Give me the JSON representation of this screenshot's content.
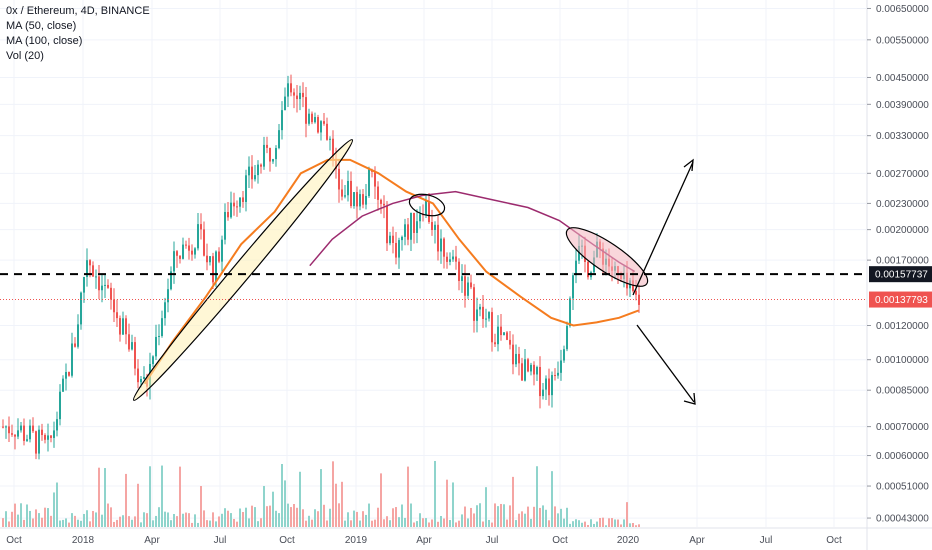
{
  "legend": {
    "symbol": "0x / Ethereum, 4D, BINANCE",
    "ma50": "MA (50, close)",
    "ma100": "MA (100, close)",
    "vol": "Vol (20)"
  },
  "colors": {
    "up": "#26a69a",
    "down": "#ef5350",
    "vol_up": "#8fd4cc",
    "vol_down": "#f5a5a3",
    "ma50": "#f57c1f",
    "ma100": "#9c2b6e",
    "last_price_line": "#ef5350",
    "dashed_level": "#000000",
    "grid": "#f0f3fa",
    "axis_text": "#4a4e58"
  },
  "chart_data": {
    "type": "candlestick",
    "title": "",
    "x_ticks": [
      "Oct",
      "2018",
      "Apr",
      "Jul",
      "Oct",
      "2019",
      "Apr",
      "Jul",
      "Oct",
      "2020",
      "Apr",
      "Jul",
      "Oct"
    ],
    "y_scale": "log",
    "y_ticks": [
      "0.00650000",
      "0.00550000",
      "0.00450000",
      "0.00390000",
      "0.00330000",
      "0.00270000",
      "0.00230000",
      "0.00200000",
      "0.00170000",
      "0.00120000",
      "0.00100000",
      "0.00085000",
      "0.00070000",
      "0.00060000",
      "0.00051000",
      "0.00043000"
    ],
    "ylim": [
      0.00041,
      0.0068
    ],
    "price_labels": {
      "dashed_level": "0.00157737",
      "last_price": "0.00137793"
    },
    "last_price_value": 0.00137793,
    "dashed_level_value": 0.00157737,
    "price_path": [
      [
        "2017-10-01",
        0.0007
      ],
      [
        "2017-11-15",
        0.00062
      ],
      [
        "2017-12-20",
        0.0011
      ],
      [
        "2018-01-05",
        0.00175
      ],
      [
        "2018-01-25",
        0.0015
      ],
      [
        "2018-02-15",
        0.00125
      ],
      [
        "2018-03-10",
        0.001
      ],
      [
        "2018-03-25",
        0.00086
      ],
      [
        "2018-04-20",
        0.0014
      ],
      [
        "2018-05-05",
        0.00175
      ],
      [
        "2018-06-01",
        0.00195
      ],
      [
        "2018-06-25",
        0.0016
      ],
      [
        "2018-07-15",
        0.0023
      ],
      [
        "2018-08-10",
        0.0026
      ],
      [
        "2018-09-10",
        0.0031
      ],
      [
        "2018-10-05",
        0.0044
      ],
      [
        "2018-10-25",
        0.0038
      ],
      [
        "2018-11-20",
        0.0035
      ],
      [
        "2018-12-10",
        0.0026
      ],
      [
        "2019-01-05",
        0.0023
      ],
      [
        "2019-01-20",
        0.00265
      ],
      [
        "2019-02-20",
        0.0018
      ],
      [
        "2019-03-20",
        0.0021
      ],
      [
        "2019-04-01",
        0.00235
      ],
      [
        "2019-04-20",
        0.0019
      ],
      [
        "2019-05-20",
        0.0016
      ],
      [
        "2019-06-10",
        0.0013
      ],
      [
        "2019-07-10",
        0.00115
      ],
      [
        "2019-08-01",
        0.001
      ],
      [
        "2019-08-25",
        0.0009
      ],
      [
        "2019-09-20",
        0.00088
      ],
      [
        "2019-10-05",
        0.0011
      ],
      [
        "2019-10-20",
        0.0018
      ],
      [
        "2019-11-05",
        0.00165
      ],
      [
        "2019-11-25",
        0.0018
      ],
      [
        "2019-12-15",
        0.00155
      ],
      [
        "2020-01-05",
        0.0014
      ],
      [
        "2020-01-15",
        0.00138
      ]
    ],
    "ma50_path": [
      [
        "2018-03-25",
        0.00088
      ],
      [
        "2018-05-01",
        0.0011
      ],
      [
        "2018-06-15",
        0.0014
      ],
      [
        "2018-08-01",
        0.00185
      ],
      [
        "2018-09-15",
        0.0022
      ],
      [
        "2018-10-20",
        0.0027
      ],
      [
        "2018-11-25",
        0.0029
      ],
      [
        "2018-12-25",
        0.0029
      ],
      [
        "2019-02-01",
        0.0027
      ],
      [
        "2019-03-10",
        0.00245
      ],
      [
        "2019-04-15",
        0.0023
      ],
      [
        "2019-05-20",
        0.0019
      ],
      [
        "2019-06-25",
        0.0016
      ],
      [
        "2019-08-10",
        0.0014
      ],
      [
        "2019-09-20",
        0.00125
      ],
      [
        "2019-10-20",
        0.0012
      ],
      [
        "2019-11-20",
        0.00122
      ],
      [
        "2019-12-20",
        0.00125
      ],
      [
        "2020-01-15",
        0.0013
      ]
    ],
    "ma100_path": [
      [
        "2018-11-01",
        0.00165
      ],
      [
        "2018-12-01",
        0.0019
      ],
      [
        "2019-01-10",
        0.00215
      ],
      [
        "2019-02-20",
        0.0023
      ],
      [
        "2019-04-01",
        0.0024
      ],
      [
        "2019-05-15",
        0.00245
      ],
      [
        "2019-07-01",
        0.00235
      ],
      [
        "2019-08-20",
        0.00225
      ],
      [
        "2019-10-01",
        0.0021
      ],
      [
        "2019-11-15",
        0.00185
      ],
      [
        "2019-12-20",
        0.00168
      ],
      [
        "2020-01-10",
        0.0016
      ]
    ],
    "annotations": [
      {
        "type": "ellipse",
        "label": "rising-trend-ellipse"
      },
      {
        "type": "ellipse",
        "label": "ma-cross-ellipse"
      },
      {
        "type": "ellipse",
        "label": "recent-top-ellipse"
      },
      {
        "type": "arrow",
        "label": "up-arrow"
      },
      {
        "type": "arrow",
        "label": "down-arrow"
      }
    ],
    "grid": true,
    "legend_position": "top-left"
  }
}
